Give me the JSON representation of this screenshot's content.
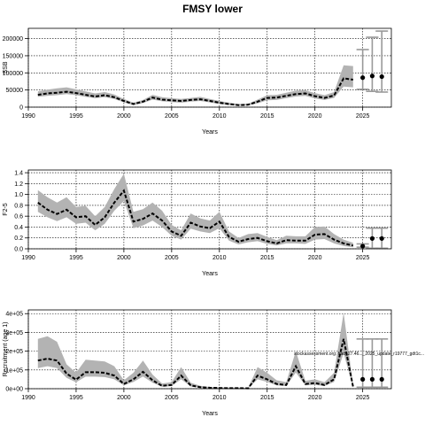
{
  "title": "FMSY lower",
  "chart_data": [
    {
      "type": "line",
      "panel": "ssb",
      "xlabel": "Years",
      "ylabel": "SSB",
      "xlim": [
        1990,
        2028
      ],
      "ylim": [
        0,
        230000
      ],
      "xticks": [
        1990,
        1995,
        2000,
        2005,
        2010,
        2015,
        2020,
        2025
      ],
      "yticks": [
        0,
        50000,
        100000,
        150000,
        200000
      ],
      "ytick_labels": [
        "0",
        "50000",
        "100000",
        "150000",
        "200000"
      ],
      "grid": true,
      "historical": {
        "x": [
          1991,
          1992,
          1993,
          1994,
          1995,
          1996,
          1997,
          1998,
          1999,
          2000,
          2001,
          2002,
          2003,
          2004,
          2005,
          2006,
          2007,
          2008,
          2009,
          2010,
          2011,
          2012,
          2013,
          2014,
          2015,
          2016,
          2017,
          2018,
          2019,
          2020,
          2021,
          2022,
          2023,
          2024
        ],
        "median": [
          36000,
          40000,
          42000,
          45000,
          41000,
          36000,
          31000,
          35000,
          29000,
          18000,
          9000,
          16000,
          28000,
          22000,
          20000,
          18000,
          21000,
          23000,
          18000,
          13000,
          9000,
          6000,
          7000,
          16000,
          27000,
          28000,
          33000,
          38000,
          40000,
          32000,
          27000,
          34000,
          84000,
          80000
        ],
        "lower": [
          30000,
          33000,
          35000,
          38000,
          35000,
          30000,
          26000,
          29000,
          24000,
          14000,
          6000,
          12000,
          22000,
          17000,
          15000,
          13000,
          16000,
          18000,
          14000,
          9000,
          6000,
          4000,
          5000,
          11000,
          20000,
          21000,
          26000,
          31000,
          33000,
          25000,
          21000,
          27000,
          60000,
          58000
        ],
        "upper": [
          46000,
          51000,
          55000,
          58000,
          52000,
          46000,
          40000,
          44000,
          37000,
          24000,
          13000,
          21000,
          36000,
          29000,
          26000,
          24000,
          27000,
          30000,
          24000,
          18000,
          13000,
          9000,
          10000,
          22000,
          35000,
          36000,
          42000,
          48000,
          49000,
          41000,
          35000,
          44000,
          122000,
          120000
        ]
      },
      "forecast": {
        "x": [
          2025,
          2026,
          2027
        ],
        "median": [
          86000,
          91000,
          89000
        ],
        "lower": [
          52000,
          46000,
          44000
        ],
        "upper": [
          168000,
          204000,
          222000
        ]
      }
    },
    {
      "type": "line",
      "panel": "f",
      "xlabel": "Years",
      "ylabel": "F2-5",
      "xlim": [
        1990,
        2028
      ],
      "ylim": [
        0,
        1.45
      ],
      "xticks": [
        1990,
        1995,
        2000,
        2005,
        2010,
        2015,
        2020,
        2025
      ],
      "yticks": [
        0,
        0.2,
        0.4,
        0.6,
        0.8,
        1.0,
        1.2,
        1.4
      ],
      "ytick_labels": [
        "0.0",
        "0.2",
        "0.4",
        "0.6",
        "0.8",
        "1.0",
        "1.2",
        "1.4"
      ],
      "grid": true,
      "historical": {
        "x": [
          1991,
          1992,
          1993,
          1994,
          1995,
          1996,
          1997,
          1998,
          1999,
          2000,
          2001,
          2002,
          2003,
          2004,
          2005,
          2006,
          2007,
          2008,
          2009,
          2010,
          2011,
          2012,
          2013,
          2014,
          2015,
          2016,
          2017,
          2018,
          2019,
          2020,
          2021,
          2022,
          2023,
          2024
        ],
        "median": [
          0.85,
          0.72,
          0.64,
          0.72,
          0.58,
          0.6,
          0.44,
          0.58,
          0.85,
          1.07,
          0.5,
          0.55,
          0.65,
          0.52,
          0.32,
          0.24,
          0.48,
          0.41,
          0.38,
          0.5,
          0.22,
          0.13,
          0.18,
          0.2,
          0.14,
          0.1,
          0.16,
          0.15,
          0.15,
          0.26,
          0.27,
          0.17,
          0.1,
          0.06
        ],
        "lower": [
          0.68,
          0.58,
          0.51,
          0.58,
          0.46,
          0.48,
          0.34,
          0.46,
          0.7,
          0.88,
          0.38,
          0.43,
          0.52,
          0.4,
          0.24,
          0.17,
          0.37,
          0.32,
          0.29,
          0.38,
          0.15,
          0.08,
          0.12,
          0.14,
          0.09,
          0.06,
          0.1,
          0.1,
          0.09,
          0.17,
          0.18,
          0.1,
          0.05,
          0.03
        ],
        "upper": [
          1.08,
          0.95,
          0.85,
          0.95,
          0.77,
          0.79,
          0.6,
          0.77,
          1.1,
          1.38,
          0.68,
          0.73,
          0.85,
          0.7,
          0.44,
          0.34,
          0.65,
          0.56,
          0.52,
          0.68,
          0.32,
          0.2,
          0.27,
          0.29,
          0.22,
          0.16,
          0.24,
          0.23,
          0.23,
          0.4,
          0.41,
          0.27,
          0.17,
          0.11
        ]
      },
      "forecast": {
        "x": [
          2025,
          2026,
          2027
        ],
        "median": [
          0.05,
          0.19,
          0.19
        ],
        "lower": [
          0.03,
          0.01,
          0.01
        ],
        "upper": [
          0.09,
          0.38,
          0.38
        ]
      }
    },
    {
      "type": "line",
      "panel": "recruitment",
      "xlabel": "Years",
      "ylabel": "Recruitment (age 1)",
      "xlim": [
        1990,
        2028
      ],
      "ylim": [
        0,
        420000
      ],
      "xticks": [
        1990,
        1995,
        2000,
        2005,
        2010,
        2015,
        2020,
        2025
      ],
      "yticks": [
        0,
        100000,
        200000,
        300000,
        400000
      ],
      "ytick_labels": [
        "0e+00",
        "1e+05",
        "2e+05",
        "3e+05",
        "4e+05"
      ],
      "grid": true,
      "annotation": "stockassessment.org: had_27.46..._2025_update_r19777_gdt1c...",
      "historical": {
        "x": [
          1991,
          1992,
          1993,
          1994,
          1995,
          1996,
          1997,
          1998,
          1999,
          2000,
          2001,
          2002,
          2003,
          2004,
          2005,
          2006,
          2007,
          2008,
          2009,
          2010,
          2011,
          2012,
          2013,
          2014,
          2015,
          2016,
          2017,
          2018,
          2019,
          2020,
          2021,
          2022,
          2023,
          2024
        ],
        "median": [
          150000,
          160000,
          150000,
          80000,
          48000,
          88000,
          88000,
          85000,
          70000,
          25000,
          50000,
          90000,
          45000,
          15000,
          20000,
          70000,
          18000,
          8000,
          5000,
          4000,
          3000,
          3000,
          2000,
          70000,
          50000,
          25000,
          20000,
          120000,
          25000,
          30000,
          20000,
          50000,
          265000,
          10000
        ],
        "lower": [
          110000,
          120000,
          110000,
          58000,
          34000,
          64000,
          64000,
          62000,
          50000,
          18000,
          36000,
          65000,
          32000,
          10000,
          14000,
          50000,
          12000,
          5000,
          3000,
          2500,
          2000,
          2000,
          1500,
          50000,
          36000,
          18000,
          14000,
          86000,
          18000,
          21000,
          14000,
          36000,
          190000,
          7000
        ],
        "upper": [
          265000,
          280000,
          250000,
          130000,
          85000,
          155000,
          150000,
          145000,
          120000,
          45000,
          85000,
          150000,
          75000,
          28000,
          35000,
          115000,
          32000,
          15000,
          9000,
          7000,
          5500,
          5500,
          4000,
          115000,
          85000,
          45000,
          35000,
          200000,
          42000,
          50000,
          35000,
          85000,
          405000,
          18000
        ]
      },
      "forecast": {
        "x": [
          2025,
          2026,
          2027
        ],
        "median": [
          50000,
          50000,
          50000
        ],
        "lower": [
          8000,
          8000,
          8000
        ],
        "upper": [
          265000,
          265000,
          265000
        ]
      }
    }
  ]
}
